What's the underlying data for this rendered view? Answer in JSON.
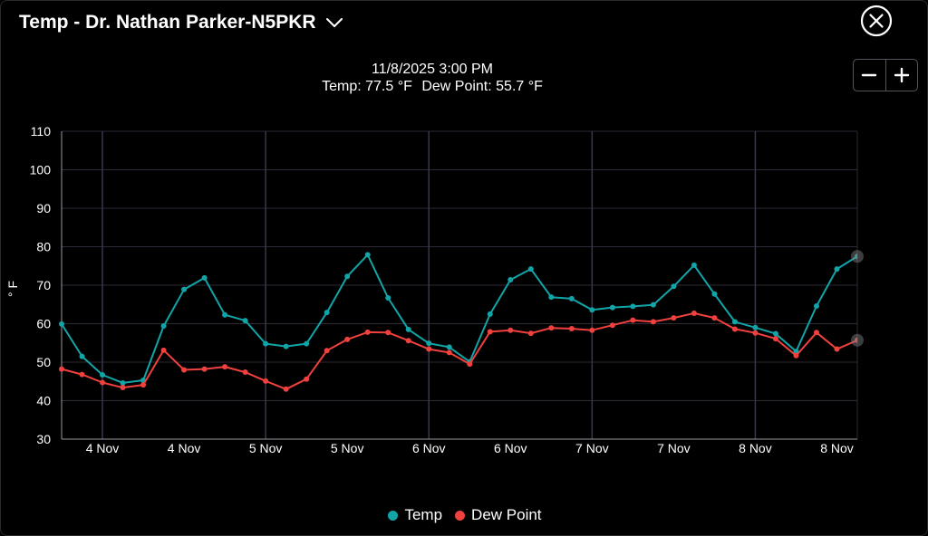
{
  "header": {
    "title": "Temp - Dr. Nathan Parker-N5PKR",
    "dropdown_icon": "chevron-down-icon",
    "close_icon": "close-circle-icon"
  },
  "readout": {
    "datetime": "11/8/2025 3:00 PM",
    "temp_label": "Temp: 77.5 °F",
    "dew_label": "Dew Point: 55.7 °F"
  },
  "zoom": {
    "zoom_out_icon": "minus-icon",
    "zoom_in_icon": "plus-icon"
  },
  "colors": {
    "temp": "#12a5a8",
    "dew": "#f0413e",
    "grid": "#2e2a36",
    "day_line": "#3e3450",
    "axis_text": "#ffffff"
  },
  "chart_data": {
    "type": "line",
    "title": "",
    "xlabel": "",
    "ylabel": "° F",
    "ylim": [
      30,
      110
    ],
    "yticks": [
      30,
      40,
      50,
      60,
      70,
      80,
      90,
      100,
      110
    ],
    "grid": true,
    "legend_position": "bottom-center",
    "x_ticks": [
      {
        "label": "4 Nov",
        "x": 2
      },
      {
        "label": "4 Nov",
        "x": 6
      },
      {
        "label": "5 Nov",
        "x": 10
      },
      {
        "label": "5 Nov",
        "x": 14
      },
      {
        "label": "6 Nov",
        "x": 18
      },
      {
        "label": "6 Nov",
        "x": 22
      },
      {
        "label": "7 Nov",
        "x": 26
      },
      {
        "label": "7 Nov",
        "x": 30
      },
      {
        "label": "8 Nov",
        "x": 34
      },
      {
        "label": "8 Nov",
        "x": 38
      }
    ],
    "day_boundaries": [
      2,
      10,
      18,
      26,
      34
    ],
    "x_range": [
      0,
      39
    ],
    "series": [
      {
        "name": "Temp",
        "values": [
          59.9,
          51.5,
          46.7,
          44.6,
          45.3,
          59.4,
          68.9,
          71.9,
          62.3,
          60.8,
          54.8,
          54.1,
          54.8,
          62.9,
          72.3,
          77.9,
          66.7,
          58.5,
          54.9,
          53.9,
          50.1,
          62.5,
          71.4,
          74.2,
          66.9,
          66.5,
          63.6,
          64.2,
          64.5,
          64.9,
          69.7,
          75.2,
          67.7,
          60.5,
          59.0,
          57.4,
          52.8,
          64.6,
          74.2,
          77.5
        ]
      },
      {
        "name": "Dew Point",
        "values": [
          48.2,
          46.8,
          44.7,
          43.4,
          44.1,
          53.1,
          48.0,
          48.2,
          48.8,
          47.4,
          45.1,
          43.0,
          45.6,
          53.0,
          55.9,
          57.8,
          57.7,
          55.6,
          53.4,
          52.5,
          49.5,
          57.9,
          58.3,
          57.5,
          58.9,
          58.7,
          58.3,
          59.6,
          60.9,
          60.5,
          61.5,
          62.7,
          61.5,
          58.6,
          57.6,
          56.1,
          51.7,
          57.7,
          53.4,
          55.7
        ]
      }
    ]
  }
}
